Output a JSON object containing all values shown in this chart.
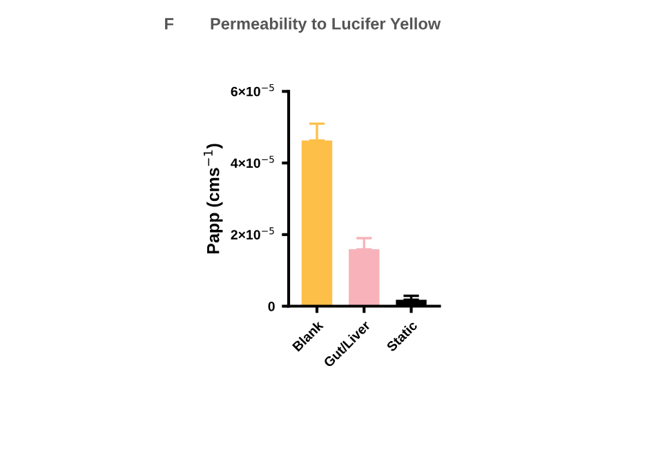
{
  "chart_data": {
    "type": "bar",
    "title": "Permeability to Lucifer Yellow",
    "annotations": [
      "F"
    ],
    "ylabel": "Papp (cms$^{−1}$)",
    "categories": [
      "Blank",
      "Gut/Liver",
      "Static"
    ],
    "values": [
      4.63e-05,
      1.59e-05,
      1.8e-06
    ],
    "errors": [
      4.7e-06,
      3.1e-06,
      1.1e-06
    ],
    "colors": [
      "#fdbf47",
      "#f7b3b9",
      "#000000"
    ],
    "ylim": [
      0,
      6e-05
    ],
    "yticks": [
      {
        "value": 0,
        "label": "0"
      },
      {
        "value": 2e-05,
        "label": "2×10$^{−5}$"
      },
      {
        "value": 4e-05,
        "label": "4×10$^{−5}$"
      },
      {
        "value": 6e-05,
        "label": "6×10$^{−5}$"
      }
    ],
    "grid": false
  }
}
